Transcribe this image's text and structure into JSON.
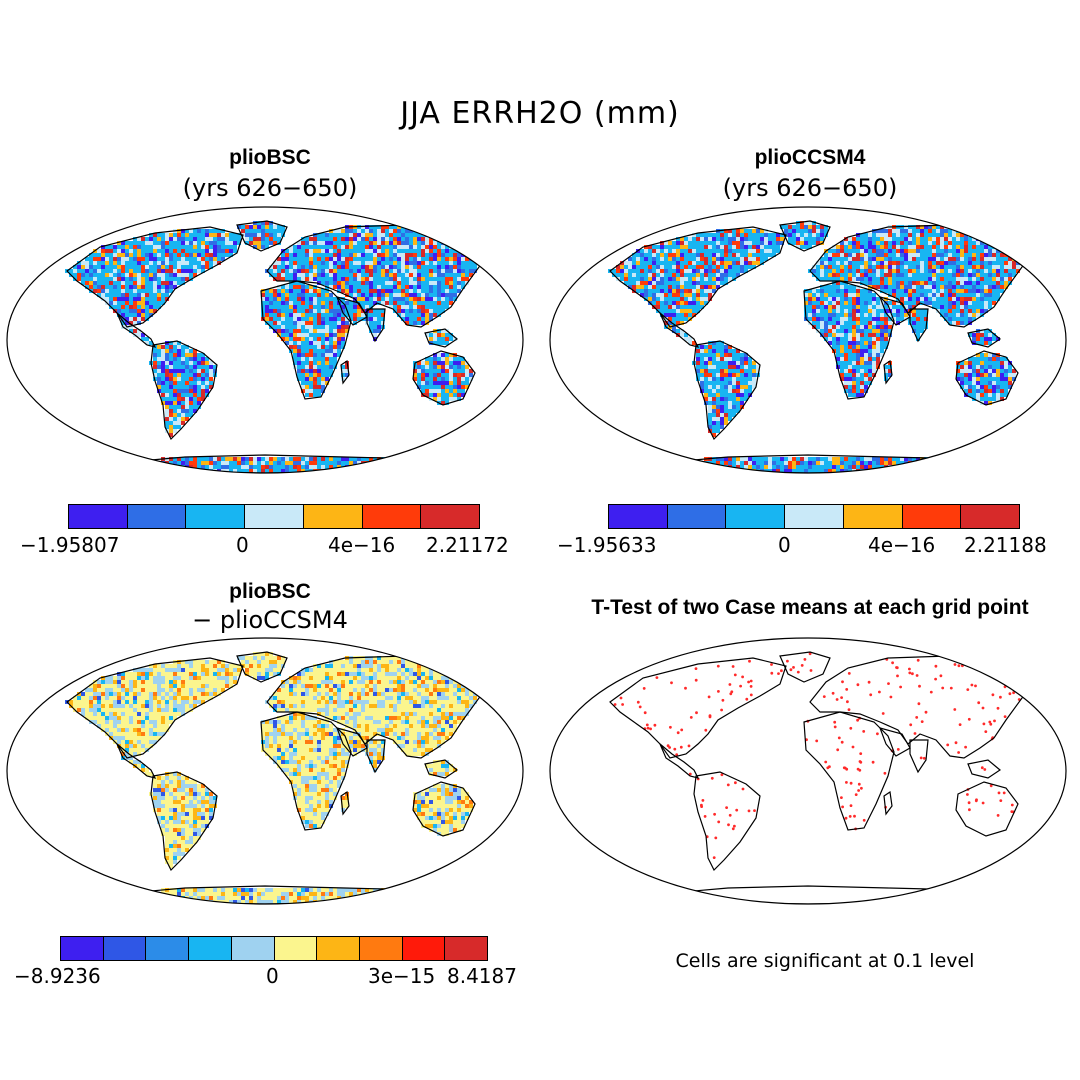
{
  "title": "JJA ERRH2O (mm)",
  "panels": [
    {
      "title": "plioBSC",
      "subtitle": "(yrs 626−650)",
      "palette": "anomaly7",
      "colorbar": {
        "colors": [
          "#3e1ff0",
          "#2f6ee6",
          "#18b5f2",
          "#c9e9f8",
          "#fdb515",
          "#ff3b0a",
          "#d72a2a"
        ],
        "labels": [
          "−1.95807",
          "0",
          "4e−16",
          "2.21172"
        ]
      }
    },
    {
      "title": "plioCCSM4",
      "subtitle": "(yrs 626−650)",
      "palette": "anomaly7",
      "colorbar": {
        "colors": [
          "#3e1ff0",
          "#2f6ee6",
          "#18b5f2",
          "#c9e9f8",
          "#fdb515",
          "#ff3b0a",
          "#d72a2a"
        ],
        "labels": [
          "−1.95633",
          "0",
          "4e−16",
          "2.21188"
        ]
      }
    },
    {
      "title": "plioBSC",
      "subtitle": "− plioCCSM4",
      "palette": "diff10",
      "colorbar": {
        "colors": [
          "#3e1ff0",
          "#2f57e6",
          "#2c8ce8",
          "#18b5f2",
          "#9fd2f0",
          "#fbf58e",
          "#fdb515",
          "#ff7a10",
          "#ff1a0a",
          "#d72a2a"
        ],
        "labels": [
          "−8.9236",
          "0",
          "3e−15",
          "8.4187"
        ]
      }
    },
    {
      "title": "T-Test of two Case means at each grid point",
      "subtitle": "",
      "palette": "ttest",
      "note": "Cells are significant at 0.1 level"
    }
  ],
  "colors": {
    "significance_dot": "#ff2a2a",
    "coastline": "#000000",
    "background": "#ffffff"
  }
}
